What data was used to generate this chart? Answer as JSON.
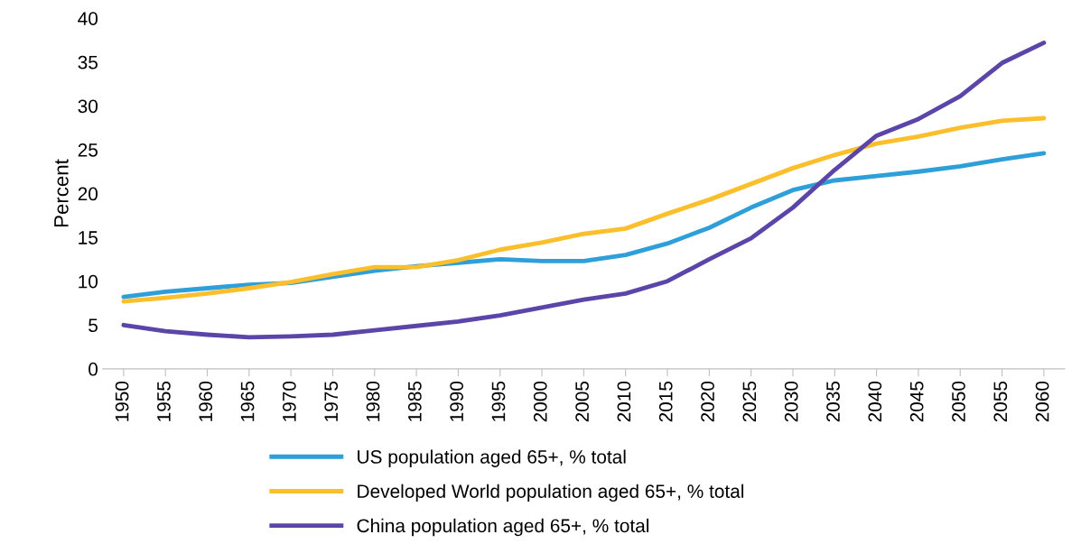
{
  "chart_data": {
    "type": "line",
    "ylabel": "Percent",
    "categories": [
      "1950",
      "1955",
      "1960",
      "1965",
      "1970",
      "1975",
      "1980",
      "1985",
      "1990",
      "1995",
      "2000",
      "2005",
      "2010",
      "2015",
      "2020",
      "2025",
      "2030",
      "2035",
      "2040",
      "2045",
      "2050",
      "2055",
      "2060"
    ],
    "series": [
      {
        "name": "US population aged 65+, % total",
        "color": "#2e9fd8",
        "values": [
          8.2,
          8.8,
          9.2,
          9.6,
          9.8,
          10.5,
          11.2,
          11.7,
          12.1,
          12.5,
          12.3,
          12.3,
          13.0,
          14.3,
          16.1,
          18.4,
          20.4,
          21.5,
          22.0,
          22.5,
          23.1,
          23.9,
          24.6
        ]
      },
      {
        "name": "Developed World population aged 65+, % total",
        "color": "#fcbf2c",
        "values": [
          7.7,
          8.1,
          8.6,
          9.2,
          9.9,
          10.8,
          11.6,
          11.6,
          12.4,
          13.6,
          14.4,
          15.4,
          16.0,
          17.7,
          19.3,
          21.1,
          22.9,
          24.4,
          25.7,
          26.5,
          27.5,
          28.3,
          28.6
        ]
      },
      {
        "name": "China population aged 65+, % total",
        "color": "#5b45a8",
        "values": [
          5.0,
          4.3,
          3.9,
          3.6,
          3.7,
          3.9,
          4.4,
          4.9,
          5.4,
          6.1,
          7.0,
          7.9,
          8.6,
          10.0,
          12.5,
          14.9,
          18.4,
          22.7,
          26.6,
          28.5,
          31.1,
          34.9,
          37.2
        ]
      }
    ],
    "ylim": [
      0,
      40
    ],
    "yticks": [
      0,
      5,
      10,
      15,
      20,
      25,
      30,
      35,
      40
    ],
    "grid": false,
    "legend": "bottom",
    "marker": "none",
    "line_style": "solid"
  }
}
